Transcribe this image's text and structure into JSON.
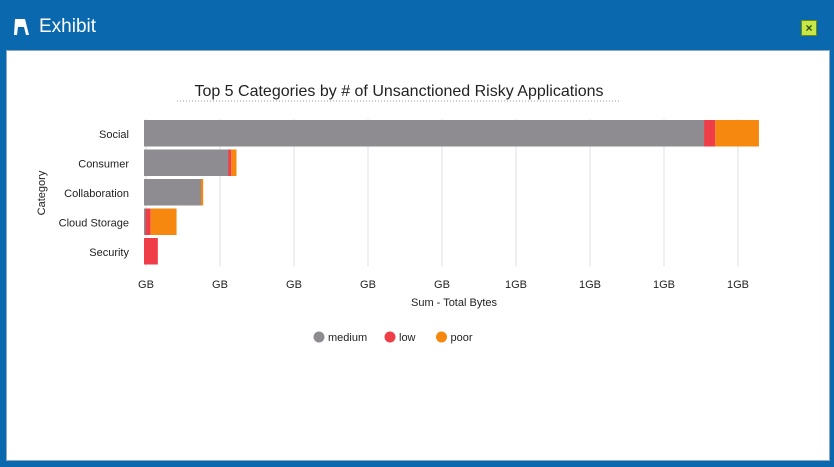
{
  "window": {
    "title": "Exhibit",
    "icon": "exhibit-icon",
    "close_icon": "close-icon"
  },
  "chart_data": {
    "type": "bar",
    "orientation": "horizontal",
    "stacked": true,
    "title": "Top 5 Categories by # of Unsanctioned Risky Applications",
    "xlabel": "Sum - Total Bytes",
    "ylabel": "Category",
    "categories": [
      "Social",
      "Consumer",
      "Collaboration",
      "Cloud Storage",
      "Security"
    ],
    "x_tick_labels": [
      "GB",
      "GB",
      "GB",
      "GB",
      "GB",
      "1GB",
      "1GB",
      "1GB",
      "1GB"
    ],
    "x_units_note_free": true,
    "xlim": [
      0,
      8.3
    ],
    "grid": true,
    "legend_position": "bottom",
    "series": [
      {
        "name": "medium",
        "color": "#8e8c91",
        "values": [
          7.57,
          1.14,
          0.77,
          0.02,
          0
        ]
      },
      {
        "name": "low",
        "color": "#ef3e48",
        "values": [
          0.15,
          0.04,
          0,
          0.07,
          0.16
        ]
      },
      {
        "name": "poor",
        "color": "#f6870f",
        "values": [
          0.59,
          0.07,
          0.03,
          0.35,
          0
        ]
      }
    ]
  }
}
